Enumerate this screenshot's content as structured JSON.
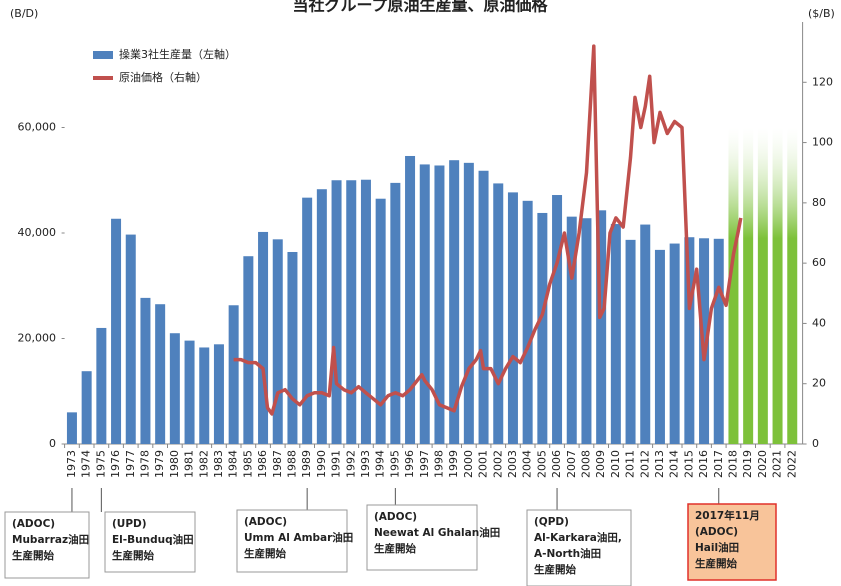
{
  "chart_data": {
    "type": "bar-line",
    "title": "当社グループ原油生産量、原油価格",
    "y_label": "(B/D)",
    "y2_label": "($/B)",
    "categories": [
      "1973",
      "1974",
      "1975",
      "1976",
      "1977",
      "1978",
      "1979",
      "1980",
      "1981",
      "1982",
      "1983",
      "1984",
      "1985",
      "1986",
      "1987",
      "1988",
      "1989",
      "1990",
      "1991",
      "1992",
      "1993",
      "1994",
      "1995",
      "1996",
      "1997",
      "1998",
      "1999",
      "2000",
      "2001",
      "2002",
      "2003",
      "2004",
      "2005",
      "2006",
      "2007",
      "2008",
      "2009",
      "2010",
      "2011",
      "2012",
      "2013",
      "2014",
      "2015",
      "2016",
      "2017",
      "2018",
      "2019",
      "2020",
      "2021",
      "2022"
    ],
    "series": [
      {
        "name": "操業3社生産量（左軸）",
        "color": "#4f81bd",
        "values": [
          6000,
          13800,
          22000,
          42700,
          39700,
          27700,
          26500,
          21000,
          19600,
          18300,
          18900,
          26300,
          35600,
          40200,
          38800,
          36400,
          46700,
          48300,
          50000,
          50000,
          50100,
          46500,
          49500,
          54600,
          53000,
          52800,
          53800,
          53300,
          51800,
          49400,
          47700,
          46100,
          43800,
          47200,
          43100,
          42800,
          44300,
          41700,
          38700,
          41600,
          36800,
          38000,
          39200,
          39000,
          38900,
          null,
          null,
          null,
          null,
          null
        ]
      },
      {
        "name": "原油価格（右軸）",
        "color": "#c0504d",
        "axis": "y2",
        "x": [
          1984,
          1984.5,
          1985,
          1985.5,
          1986,
          1986.3,
          1986.6,
          1987,
          1987.5,
          1988,
          1988.5,
          1989,
          1989.5,
          1990,
          1990.5,
          1990.8,
          1991,
          1991.5,
          1992,
          1992.5,
          1993,
          1993.5,
          1994,
          1994.5,
          1995,
          1995.5,
          1996,
          1996.8,
          1997,
          1997.5,
          1998,
          1998.5,
          1999,
          1999.5,
          2000,
          2000.5,
          2000.8,
          2001,
          2001.5,
          2002,
          2002.5,
          2003,
          2003.5,
          2004,
          2004.5,
          2005,
          2005.5,
          2006,
          2006.5,
          2007,
          2007.5,
          2008,
          2008.5,
          2008.9,
          2009.2,
          2009.6,
          2010,
          2010.5,
          2011,
          2011.3,
          2011.7,
          2012,
          2012.3,
          2012.6,
          2013,
          2013.5,
          2014,
          2014.5,
          2015,
          2015.5,
          2016,
          2016.5,
          2017,
          2017.5,
          2018,
          2018.3,
          2018.5
        ],
        "values": [
          28,
          28,
          27,
          27,
          25,
          12,
          10,
          17,
          18,
          15,
          13,
          16,
          17,
          17,
          16,
          32,
          20,
          18,
          17,
          19,
          17,
          15,
          13,
          16,
          17,
          16,
          18,
          23,
          21,
          18,
          13,
          12,
          11,
          19,
          25,
          28,
          31,
          25,
          25,
          20,
          25,
          29,
          27,
          32,
          38,
          43,
          53,
          60,
          70,
          55,
          70,
          90,
          132,
          42,
          45,
          70,
          75,
          72,
          95,
          115,
          105,
          112,
          122,
          100,
          110,
          103,
          107,
          105,
          45,
          58,
          28,
          45,
          52,
          46,
          63,
          70,
          75
        ]
      }
    ],
    "projected_values": [
      null,
      null,
      null,
      null,
      null,
      null,
      null,
      null,
      null,
      null,
      null,
      null,
      null,
      null,
      null,
      null,
      null,
      null,
      null,
      null,
      null,
      null,
      null,
      null,
      null,
      null,
      null,
      null,
      null,
      null,
      null,
      null,
      null,
      null,
      null,
      null,
      null,
      null,
      null,
      null,
      null,
      null,
      null,
      null,
      null,
      60000,
      60000,
      60000,
      60000,
      60000
    ],
    "projected_color": "#7dc13a",
    "ylim": [
      0,
      80000
    ],
    "yticks": [
      0,
      {
        "value": 20000,
        "label": "20,000"
      },
      {
        "value": 40000,
        "label": "40,000"
      },
      {
        "value": 60000,
        "label": "60,000"
      }
    ],
    "y2lim": [
      0,
      140
    ],
    "y2ticks": [
      0,
      20,
      40,
      60,
      80,
      100,
      120
    ],
    "legend": "upper left",
    "annotations": [
      {
        "lines": [
          "(ADOC)",
          "Mubarraz油田",
          "生産開始"
        ]
      },
      {
        "lines": [
          "(UPD)",
          "El-Bunduq油田",
          "生産開始"
        ]
      },
      {
        "lines": [
          "(ADOC)",
          "Umm Al Ambar油田",
          "生産開始"
        ]
      },
      {
        "lines": [
          "(ADOC)",
          "Neewat Al Ghalan油田",
          "生産開始"
        ]
      },
      {
        "lines": [
          "(QPD)",
          "Al-Karkara油田,",
          "A-North油田",
          "生産開始"
        ]
      },
      {
        "lines": [
          "2017年11月",
          "(ADOC)",
          "Hail油田",
          "生産開始"
        ]
      }
    ]
  }
}
